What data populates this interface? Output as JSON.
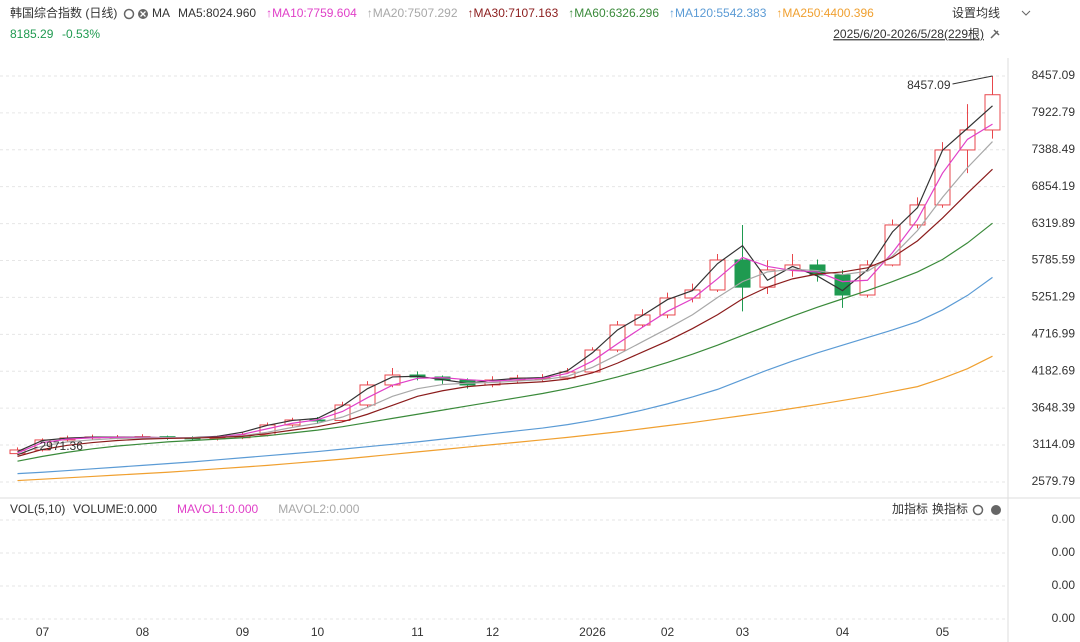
{
  "header": {
    "title": "韩国综合指数 (日线)",
    "ma_label": "MA",
    "settings": "设置均线",
    "change": "-0.53%",
    "range": "2025/6/20-2026/5/28(229根)"
  },
  "volume_panel": {
    "title": "VOL(5,10)",
    "items": [
      "VOLUME:0.000",
      "MAVOL1:0.000",
      "MAVOL2:0.000"
    ],
    "buttons": [
      "加指标",
      "换指标"
    ],
    "axis_labels": [
      "0.00",
      "0.00",
      "0.00",
      "0.00"
    ]
  },
  "chart_data": {
    "type": "candlestick",
    "categories": [
      null,
      "07",
      null,
      null,
      null,
      "08",
      null,
      null,
      null,
      "09",
      null,
      null,
      "10",
      null,
      null,
      null,
      "11",
      null,
      null,
      "12",
      null,
      null,
      null,
      "2026",
      null,
      null,
      "02",
      null,
      null,
      "03",
      null,
      null,
      null,
      "04",
      null,
      null,
      null,
      "05",
      null,
      null
    ],
    "candles": {
      "open": [
        2990,
        3043,
        3188,
        3217,
        3231,
        3231,
        3235,
        3217,
        3210,
        3220,
        3260,
        3405,
        3477,
        3470,
        3694,
        3984,
        4128,
        4099,
        4056,
        3984,
        4056,
        4085,
        4085,
        4172,
        4490,
        4852,
        4997,
        5243,
        5359,
        5793,
        5400,
        5649,
        5721,
        5576,
        5286,
        5721,
        6300,
        6590,
        7386,
        7675
      ],
      "high": [
        3080,
        3210,
        3250,
        3265,
        3260,
        3270,
        3250,
        3240,
        3250,
        3300,
        3440,
        3510,
        3520,
        3740,
        4040,
        4230,
        4180,
        4120,
        4080,
        4110,
        4130,
        4140,
        4230,
        4530,
        4910,
        5080,
        5320,
        5450,
        5880,
        6300,
        5790,
        5880,
        5800,
        5650,
        5790,
        6380,
        6700,
        7500,
        8050,
        8457.09
      ],
      "low": [
        2971.36,
        3020,
        3160,
        3190,
        3200,
        3200,
        3190,
        3180,
        3180,
        3200,
        3240,
        3380,
        3420,
        3450,
        3660,
        3950,
        4050,
        4000,
        3930,
        3950,
        4020,
        4030,
        4060,
        4160,
        4460,
        4820,
        4950,
        5180,
        5330,
        5050,
        5300,
        5550,
        5480,
        5100,
        5250,
        5700,
        6250,
        6550,
        7050,
        7550
      ],
      "close": [
        3043,
        3188,
        3217,
        3231,
        3231,
        3235,
        3217,
        3210,
        3220,
        3260,
        3405,
        3477,
        3470,
        3694,
        3984,
        4128,
        4099,
        4056,
        3984,
        4056,
        4085,
        4085,
        4172,
        4490,
        4852,
        4997,
        5243,
        5359,
        5793,
        5400,
        5649,
        5721,
        5576,
        5286,
        5721,
        6300,
        6590,
        7386,
        7675,
        8185.29
      ],
      "up_color": "#e8474c",
      "down_color": "#1f9a50"
    },
    "series": [
      {
        "name": "MA5:8024.960",
        "color": "#333333",
        "values": [
          3020,
          3180,
          3215,
          3230,
          3230,
          3228,
          3220,
          3222,
          3240,
          3300,
          3400,
          3470,
          3500,
          3680,
          3930,
          4100,
          4110,
          4060,
          4010,
          4050,
          4080,
          4090,
          4190,
          4450,
          4780,
          4990,
          5220,
          5350,
          5740,
          6000,
          5500,
          5700,
          5560,
          5350,
          5650,
          6200,
          6550,
          7380,
          7700,
          8025
        ]
      },
      {
        "name": "↑MA10:7759.604",
        "color": "#e040c8",
        "values": [
          3000,
          3150,
          3200,
          3220,
          3225,
          3225,
          3222,
          3220,
          3230,
          3270,
          3350,
          3430,
          3480,
          3600,
          3800,
          3980,
          4080,
          4090,
          4060,
          4040,
          4060,
          4080,
          4150,
          4330,
          4580,
          4820,
          5050,
          5230,
          5520,
          5830,
          5700,
          5640,
          5620,
          5480,
          5500,
          5900,
          6380,
          7050,
          7540,
          7760
        ]
      },
      {
        "name": "↑MA20:7507.292",
        "color": "#a8a8a8",
        "values": [
          2980,
          3100,
          3160,
          3190,
          3210,
          3215,
          3220,
          3220,
          3225,
          3250,
          3300,
          3370,
          3430,
          3520,
          3660,
          3820,
          3930,
          3990,
          4010,
          4020,
          4040,
          4060,
          4110,
          4240,
          4420,
          4610,
          4800,
          5000,
          5250,
          5480,
          5620,
          5660,
          5640,
          5580,
          5630,
          5850,
          6220,
          6700,
          7130,
          7507
        ]
      },
      {
        "name": "↑MA30:7107.163",
        "color": "#8b1c1c",
        "values": [
          2950,
          3050,
          3110,
          3150,
          3180,
          3200,
          3210,
          3215,
          3225,
          3240,
          3280,
          3330,
          3380,
          3450,
          3560,
          3690,
          3820,
          3900,
          3960,
          3990,
          4010,
          4030,
          4070,
          4160,
          4300,
          4460,
          4620,
          4800,
          5000,
          5230,
          5400,
          5520,
          5590,
          5620,
          5680,
          5830,
          6070,
          6400,
          6760,
          7107
        ]
      },
      {
        "name": "↑MA60:6326.296",
        "color": "#3a8a3a",
        "values": [
          2880,
          2950,
          3010,
          3060,
          3100,
          3130,
          3160,
          3180,
          3200,
          3220,
          3250,
          3290,
          3330,
          3380,
          3440,
          3500,
          3560,
          3620,
          3680,
          3740,
          3800,
          3860,
          3930,
          4010,
          4100,
          4200,
          4310,
          4430,
          4560,
          4700,
          4840,
          4980,
          5110,
          5230,
          5350,
          5480,
          5620,
          5800,
          6040,
          6326
        ]
      },
      {
        "name": "↑MA120:5542.383",
        "color": "#5b9bd5",
        "values": [
          2700,
          2720,
          2745,
          2770,
          2795,
          2820,
          2845,
          2870,
          2900,
          2930,
          2960,
          2990,
          3020,
          3055,
          3090,
          3125,
          3160,
          3200,
          3240,
          3280,
          3320,
          3360,
          3410,
          3470,
          3540,
          3620,
          3710,
          3810,
          3920,
          4060,
          4200,
          4330,
          4450,
          4560,
          4670,
          4780,
          4900,
          5070,
          5280,
          5542
        ]
      },
      {
        "name": "↑MA250:4400.396",
        "color": "#f0a030",
        "values": [
          2600,
          2620,
          2640,
          2660,
          2680,
          2700,
          2720,
          2745,
          2770,
          2795,
          2820,
          2850,
          2880,
          2910,
          2945,
          2980,
          3015,
          3050,
          3085,
          3120,
          3155,
          3190,
          3225,
          3265,
          3305,
          3350,
          3395,
          3440,
          3490,
          3540,
          3590,
          3645,
          3700,
          3760,
          3820,
          3890,
          3960,
          4080,
          4220,
          4400
        ]
      }
    ],
    "ylim": [
      2391,
      8717
    ],
    "yticks": [
      8457.09,
      7922.79,
      7388.49,
      6854.19,
      6319.89,
      5785.59,
      5251.29,
      4716.99,
      4182.69,
      3648.39,
      3114.09,
      2579.79
    ],
    "grid": true
  }
}
